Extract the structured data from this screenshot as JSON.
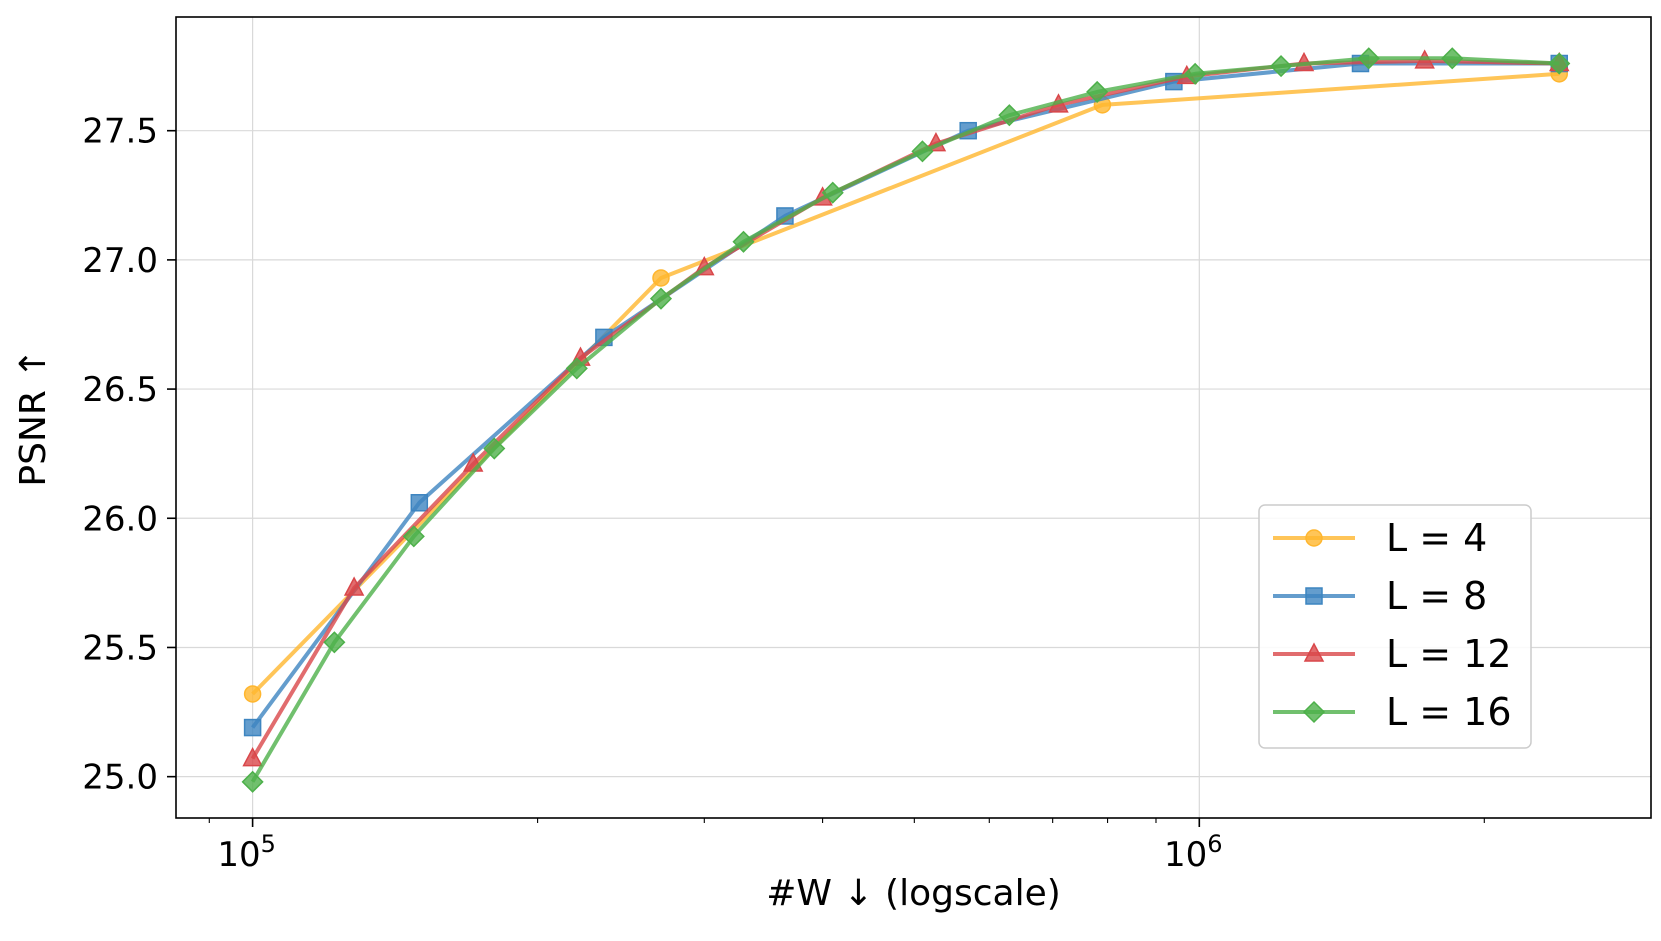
{
  "chart_data": {
    "type": "line",
    "title": "",
    "xlabel": "#W ↓ (logscale)",
    "ylabel": "PSNR ↑",
    "x_scale": "log",
    "xlim": [
      83000,
      3000000
    ],
    "ylim": [
      24.84,
      27.94
    ],
    "grid": true,
    "legend_position": "lower-right",
    "x_ticks": [
      {
        "value": 100000,
        "base": "10",
        "exp": "5"
      },
      {
        "value": 1000000,
        "base": "10",
        "exp": "6"
      }
    ],
    "y_ticks": [
      {
        "value": 25.0,
        "label": "25.0"
      },
      {
        "value": 25.5,
        "label": "25.5"
      },
      {
        "value": 26.0,
        "label": "26.0"
      },
      {
        "value": 26.5,
        "label": "26.5"
      },
      {
        "value": 27.0,
        "label": "27.0"
      },
      {
        "value": 27.5,
        "label": "27.5"
      }
    ],
    "series": [
      {
        "name": "L = 4",
        "color": "#ffb62e",
        "marker": "circle",
        "x": [
          100000,
          270000,
          790000,
          2400000
        ],
        "y": [
          25.32,
          26.93,
          27.6,
          27.72
        ]
      },
      {
        "name": "L = 8",
        "color": "#3d85c0",
        "marker": "square",
        "x": [
          100000,
          150000,
          235000,
          365000,
          570000,
          940000,
          1480000,
          2400000
        ],
        "y": [
          25.19,
          26.06,
          26.7,
          27.17,
          27.5,
          27.69,
          27.76,
          27.76
        ]
      },
      {
        "name": "L = 12",
        "color": "#d9474a",
        "marker": "triangle",
        "x": [
          100000,
          128000,
          171000,
          222000,
          300000,
          400000,
          527000,
          710000,
          970000,
          1290000,
          1730000,
          2400000
        ],
        "y": [
          25.07,
          25.73,
          26.21,
          26.62,
          26.97,
          27.24,
          27.45,
          27.6,
          27.71,
          27.76,
          27.77,
          27.76
        ]
      },
      {
        "name": "L = 16",
        "color": "#4db04a",
        "marker": "diamond",
        "x": [
          100000,
          122000,
          148000,
          180000,
          220000,
          270000,
          330000,
          410000,
          510000,
          630000,
          780000,
          990000,
          1220000,
          1510000,
          1850000,
          2400000
        ],
        "y": [
          24.98,
          25.52,
          25.93,
          26.27,
          26.58,
          26.85,
          27.07,
          27.26,
          27.42,
          27.56,
          27.65,
          27.72,
          27.75,
          27.78,
          27.78,
          27.76
        ]
      }
    ]
  }
}
